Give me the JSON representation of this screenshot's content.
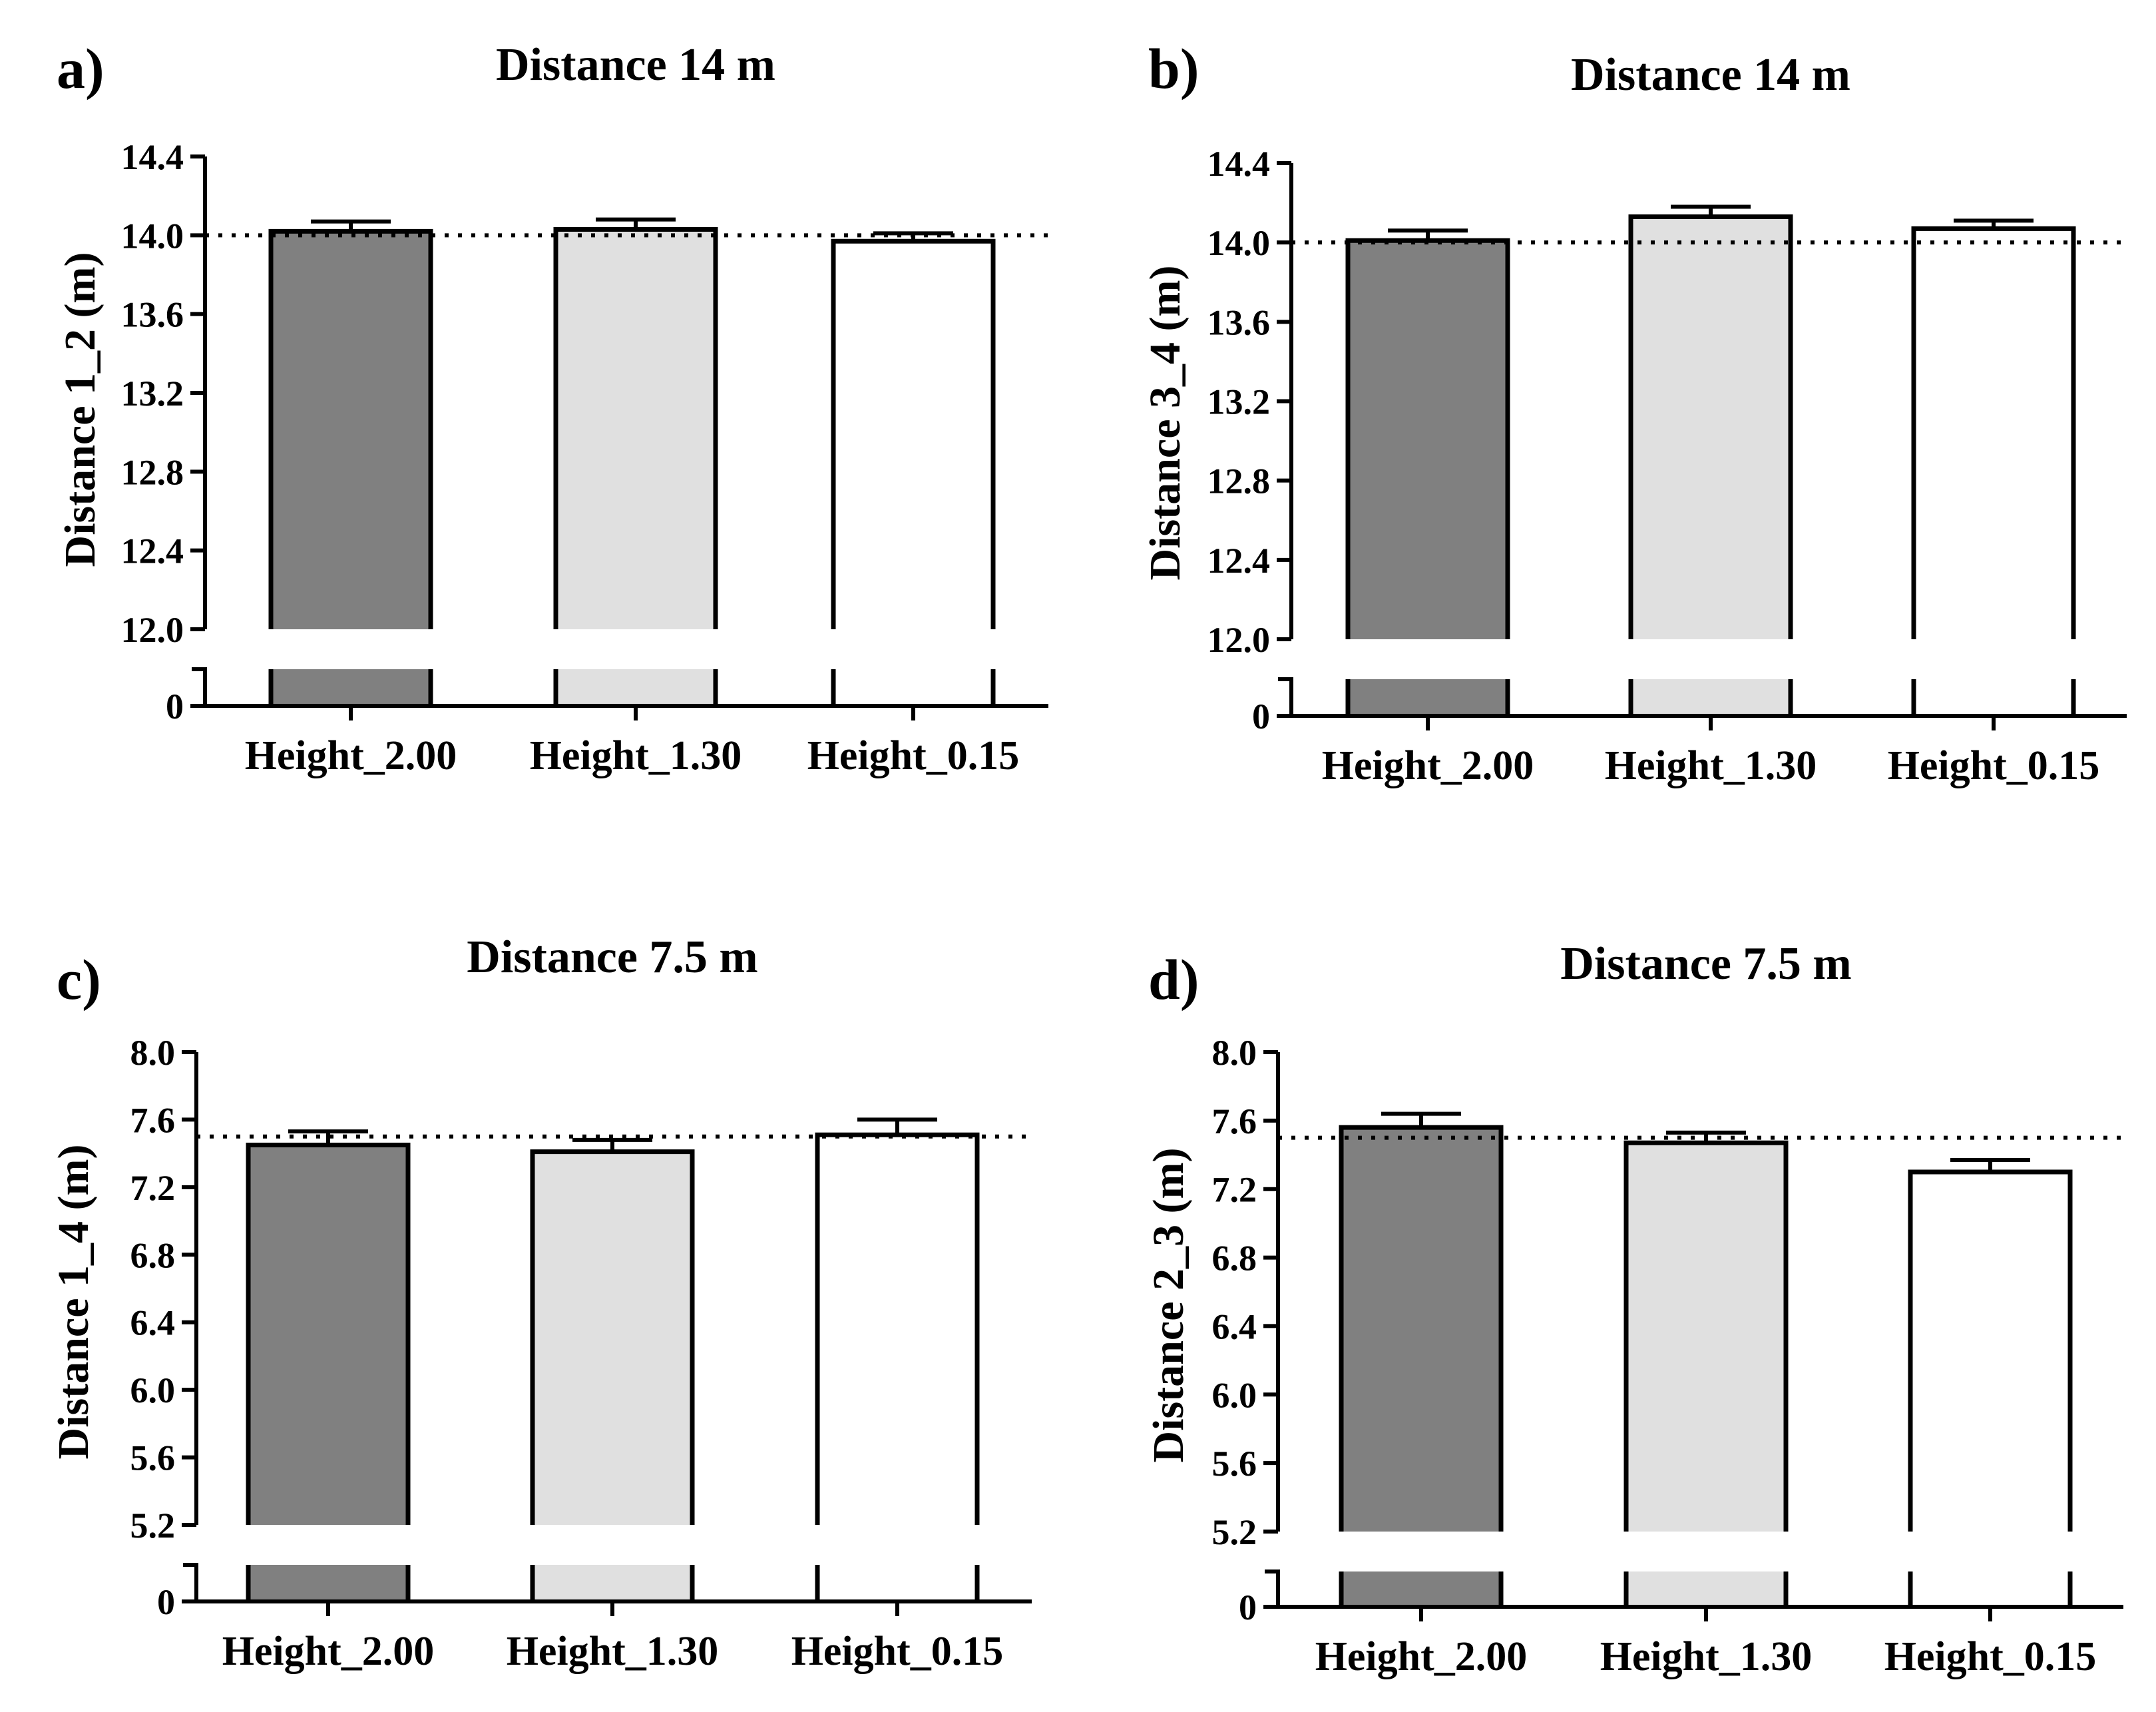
{
  "chart_data": [
    {
      "panel": "a)",
      "type": "bar",
      "title": "Distance 14 m",
      "ylabel": "Distance 1_2 (m)",
      "xlabel": "",
      "categories": [
        "Height_2.00",
        "Height_1.30",
        "Height_0.15"
      ],
      "values": [
        14.02,
        14.03,
        13.97
      ],
      "errors": [
        0.05,
        0.05,
        0.04
      ],
      "reference_line": 14.0,
      "ylim": [
        12.0,
        14.4
      ],
      "yticks": [
        "12.0",
        "12.4",
        "12.8",
        "13.2",
        "13.6",
        "14.0",
        "14.4"
      ],
      "broken_axis_zero": "0",
      "bar_colors": [
        "#808080",
        "#e0e0e0",
        "#ffffff"
      ],
      "grid": false
    },
    {
      "panel": "b)",
      "type": "bar",
      "title": "Distance 14 m",
      "ylabel": "Distance 3_4 (m)",
      "xlabel": "",
      "categories": [
        "Height_2.00",
        "Height_1.30",
        "Height_0.15"
      ],
      "values": [
        14.01,
        14.13,
        14.07
      ],
      "errors": [
        0.05,
        0.05,
        0.04
      ],
      "reference_line": 14.0,
      "ylim": [
        12.0,
        14.4
      ],
      "yticks": [
        "12.0",
        "12.4",
        "12.8",
        "13.2",
        "13.6",
        "14.0",
        "14.4"
      ],
      "broken_axis_zero": "0",
      "bar_colors": [
        "#808080",
        "#e0e0e0",
        "#ffffff"
      ],
      "grid": false
    },
    {
      "panel": "c)",
      "type": "bar",
      "title": "Distance 7.5 m",
      "ylabel": "Distance 1_4 (m)",
      "xlabel": "",
      "categories": [
        "Height_2.00",
        "Height_1.30",
        "Height_0.15"
      ],
      "values": [
        7.45,
        7.41,
        7.51
      ],
      "errors": [
        0.08,
        0.07,
        0.09
      ],
      "reference_line": 7.5,
      "ylim": [
        5.2,
        8.0
      ],
      "yticks": [
        "5.2",
        "5.6",
        "6.0",
        "6.4",
        "6.8",
        "7.2",
        "7.6",
        "8.0"
      ],
      "broken_axis_zero": "0",
      "bar_colors": [
        "#808080",
        "#e0e0e0",
        "#ffffff"
      ],
      "grid": false
    },
    {
      "panel": "d)",
      "type": "bar",
      "title": "Distance 7.5 m",
      "ylabel": "Distance 2_3 (m)",
      "xlabel": "",
      "categories": [
        "Height_2.00",
        "Height_1.30",
        "Height_0.15"
      ],
      "values": [
        7.56,
        7.47,
        7.3
      ],
      "errors": [
        0.08,
        0.06,
        0.07
      ],
      "reference_line": 7.5,
      "ylim": [
        5.2,
        8.0
      ],
      "yticks": [
        "5.2",
        "5.6",
        "6.0",
        "6.4",
        "6.8",
        "7.2",
        "7.6",
        "8.0"
      ],
      "broken_axis_zero": "0",
      "bar_colors": [
        "#808080",
        "#e0e0e0",
        "#ffffff"
      ],
      "grid": false
    }
  ]
}
